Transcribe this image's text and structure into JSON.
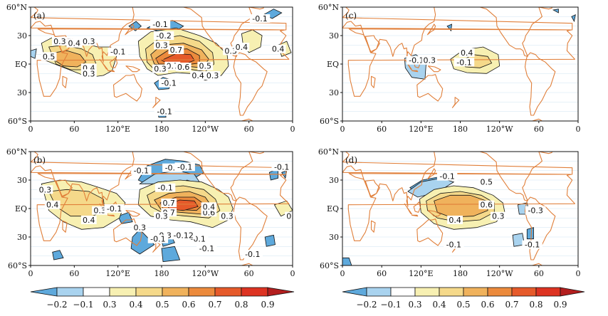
{
  "figure": {
    "panels": [
      {
        "id": "a",
        "label": "(a)",
        "contour_labels": [
          "-0.1",
          "-0.2",
          "-0.1",
          "0.7",
          "0.7",
          "0.6",
          "0.5",
          "0.3",
          "0.4",
          "0.3",
          "0.4",
          "0.5",
          "0.4",
          "0.3",
          "-0.1",
          "0.3",
          "0.4",
          "0.3",
          "-0.1",
          "-0.1",
          "0.3",
          "0.4",
          "0.3"
        ]
      },
      {
        "id": "c",
        "label": "(c)",
        "contour_labels": [
          "-0.1",
          "0.3",
          "0.4",
          "-0.1"
        ]
      },
      {
        "id": "b",
        "label": "(b)",
        "contour_labels": [
          "-0.1",
          "-0.2",
          "-0.1",
          "-0.1",
          "0.7",
          "0.7",
          "0.3",
          "0.6",
          "0.4",
          "0.3",
          "0.3",
          "0.4",
          "0.4",
          "0.3",
          "-0.1",
          "0.3",
          "0.3",
          "-0.1",
          "-0.1",
          "-0.12",
          "-0.1",
          "-0.1",
          "-0.1",
          "0.3"
        ]
      },
      {
        "id": "d",
        "label": "(d)",
        "contour_labels": [
          "-0.1",
          "0.5",
          "0.6",
          "0.4",
          "0.3",
          "-0.3",
          "-0.1",
          "-0.1"
        ]
      }
    ],
    "lat_ticks": [
      "60°N",
      "30",
      "EQ",
      "30",
      "60°S"
    ],
    "lon_ticks": [
      "0",
      "60",
      "120°E",
      "180",
      "120°W",
      "60",
      "0"
    ],
    "colorbar": {
      "ticks": [
        "−0.2",
        "−0.1",
        "0.3",
        "0.4",
        "0.5",
        "0.6",
        "0.7",
        "0.8",
        "0.9"
      ],
      "colors": [
        "#5ea9dc",
        "#a9d3ef",
        "#ffffff",
        "#f7f0b2",
        "#f5d98a",
        "#f0b25c",
        "#ec8a3c",
        "#e65a2a",
        "#dd3322",
        "#b31e1e"
      ]
    }
  }
}
